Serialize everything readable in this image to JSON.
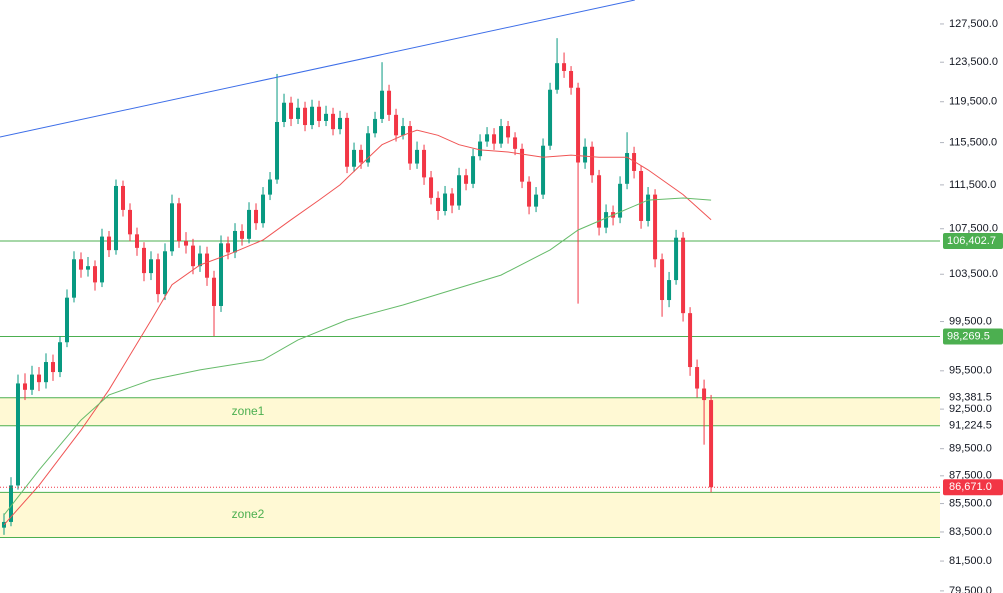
{
  "chart_data": {
    "type": "candlestick",
    "log_scale": true,
    "ylim": [
      79360,
      130070
    ],
    "xlim": [
      -0.57,
      133.7
    ],
    "yticks": [
      {
        "value": 127500,
        "label": "127,500.0"
      },
      {
        "value": 123500,
        "label": "123,500.0"
      },
      {
        "value": 119500,
        "label": "119,500.0"
      },
      {
        "value": 115500,
        "label": "115,500.0"
      },
      {
        "value": 111500,
        "label": "111,500.0"
      },
      {
        "value": 107500,
        "label": "107,500.0"
      },
      {
        "value": 103500,
        "label": "103,500.0"
      },
      {
        "value": 99500,
        "label": "99,500.0"
      },
      {
        "value": 95500,
        "label": "95,500.0"
      },
      {
        "value": 92500,
        "label": "92,500.0"
      },
      {
        "value": 89500,
        "label": "89,500.0"
      },
      {
        "value": 87500,
        "label": "87,500.0"
      },
      {
        "value": 85500,
        "label": "85,500.0"
      },
      {
        "value": 83500,
        "label": "83,500.0"
      },
      {
        "value": 81500,
        "label": "81,500.0"
      },
      {
        "value": 79500,
        "label": "79,500.0"
      }
    ],
    "up_color": "#089981",
    "down_color": "#f23645",
    "series": {
      "open": [
        83800,
        84200,
        86800,
        94500,
        94000,
        95200,
        94600,
        96200,
        95400,
        97800,
        101500,
        104800,
        103900,
        104200,
        102800,
        106800,
        105600,
        111400,
        109200,
        107000,
        105800,
        103600,
        104800,
        101800,
        105500,
        109800,
        106400,
        106000,
        104200,
        105300,
        103200,
        100800,
        106200,
        105400,
        107300,
        106600,
        109200,
        108000,
        110600,
        112000,
        117500,
        119400,
        117800,
        118900,
        117200,
        119000,
        117600,
        118300,
        116800,
        117900,
        113200,
        114800,
        113600,
        116400,
        117800,
        120600,
        118200,
        116200,
        117100,
        113500,
        114800,
        112200,
        110300,
        109100,
        110700,
        109600,
        112400,
        111600,
        114200,
        115600,
        116300,
        115400,
        117100,
        116000,
        114900,
        111800,
        109500,
        110600,
        115200,
        120700,
        123400,
        122600,
        120900,
        113600,
        115100,
        112400,
        107600,
        109000,
        108500,
        111600,
        114500,
        112800,
        108200,
        110600,
        104800,
        101300,
        103000,
        106700,
        100200,
        95800,
        94100,
        93200
      ],
      "high": [
        84800,
        87400,
        95200,
        95300,
        95900,
        95800,
        96900,
        96800,
        98300,
        102200,
        105500,
        105400,
        105000,
        104700,
        107500,
        107300,
        112000,
        111900,
        109800,
        107600,
        106300,
        105500,
        105300,
        106200,
        110600,
        110300,
        107200,
        106600,
        106000,
        105900,
        103800,
        106900,
        106800,
        108000,
        107900,
        109900,
        109800,
        111300,
        112700,
        122300,
        120300,
        120000,
        119800,
        119500,
        119700,
        119600,
        119100,
        118900,
        118600,
        118400,
        115500,
        115300,
        117100,
        118500,
        123500,
        121200,
        118800,
        117900,
        117600,
        115600,
        115300,
        112800,
        110900,
        111400,
        111200,
        113100,
        113000,
        114900,
        116300,
        117000,
        116900,
        117800,
        117600,
        116500,
        115400,
        112300,
        111300,
        115900,
        121400,
        126000,
        124500,
        123100,
        121400,
        115900,
        115600,
        112900,
        109700,
        109600,
        112300,
        116500,
        115100,
        113300,
        111300,
        111100,
        105300,
        103700,
        107400,
        107200,
        100700,
        96400,
        94800,
        93600
      ],
      "low": [
        83300,
        83900,
        86500,
        93200,
        93600,
        93900,
        94100,
        94700,
        95000,
        97400,
        101100,
        103200,
        103300,
        102100,
        102400,
        105000,
        105200,
        108600,
        106400,
        105100,
        102900,
        103000,
        101100,
        101300,
        105100,
        105800,
        105300,
        103500,
        103700,
        102500,
        98300,
        100300,
        104800,
        104900,
        106000,
        106200,
        107400,
        107600,
        110100,
        111600,
        117000,
        117100,
        117300,
        116600,
        116800,
        117000,
        117100,
        116200,
        116300,
        112600,
        112700,
        113000,
        113200,
        116000,
        117400,
        117600,
        115600,
        115800,
        112900,
        113000,
        111500,
        109700,
        108300,
        108700,
        108900,
        109200,
        111000,
        111200,
        113800,
        115100,
        114800,
        115000,
        115400,
        114300,
        111200,
        108800,
        109000,
        110200,
        114800,
        120300,
        121900,
        120200,
        101000,
        113000,
        111700,
        106900,
        107100,
        107800,
        108000,
        111100,
        112100,
        107500,
        107700,
        104100,
        99900,
        100700,
        102600,
        99500,
        95100,
        93400,
        89800,
        86300
      ],
      "close": [
        84200,
        86800,
        94500,
        94000,
        95200,
        94600,
        96200,
        95400,
        97800,
        101500,
        104800,
        103900,
        104200,
        102800,
        106800,
        105600,
        111400,
        109200,
        107000,
        105800,
        103600,
        104800,
        101800,
        105500,
        109800,
        106400,
        106000,
        104200,
        105300,
        103200,
        100800,
        106200,
        105400,
        107300,
        106600,
        109200,
        108000,
        110600,
        112000,
        117500,
        119400,
        117800,
        118900,
        117200,
        119000,
        117600,
        118300,
        116800,
        117900,
        113200,
        114800,
        113600,
        116400,
        117800,
        120600,
        118200,
        116200,
        117100,
        113500,
        114800,
        112200,
        110300,
        109100,
        110700,
        109600,
        112400,
        111600,
        114200,
        115600,
        116300,
        115400,
        117100,
        116000,
        114900,
        111800,
        109500,
        110600,
        115200,
        120700,
        123400,
        122600,
        120900,
        113600,
        115100,
        112400,
        107600,
        109000,
        108500,
        111600,
        114500,
        112800,
        108200,
        110600,
        104800,
        101300,
        103000,
        106700,
        100200,
        95800,
        94100,
        93200,
        86671
      ]
    },
    "last_price_label": "86,671.0",
    "lines": [
      {
        "color": "#f05454",
        "x": [
          0,
          5,
          11,
          15,
          21,
          24,
          28,
          32,
          37,
          41,
          45,
          48,
          51,
          54,
          57,
          59,
          62,
          65,
          68,
          72,
          77,
          81,
          85,
          89,
          92,
          97,
          101
        ],
        "values": [
          84000,
          86800,
          90900,
          94000,
          99600,
          102600,
          104300,
          105200,
          106500,
          108300,
          110100,
          111500,
          113400,
          115300,
          116200,
          116700,
          116200,
          115300,
          114800,
          114600,
          114100,
          114300,
          114100,
          114100,
          112900,
          110600,
          108300
        ]
      },
      {
        "color": "#66bb6a",
        "x": [
          0,
          5,
          11,
          15,
          21,
          28,
          37,
          42,
          49,
          57,
          64,
          71,
          78,
          82,
          88,
          92,
          97,
          101
        ],
        "values": [
          84690,
          87920,
          91660,
          93600,
          94770,
          95570,
          96370,
          97990,
          99630,
          100880,
          102150,
          103430,
          105620,
          107390,
          109010,
          110100,
          110290,
          110100
        ]
      },
      {
        "color": "#3d6ee8",
        "x": [
          -0.57,
          90.1
        ],
        "values": [
          116040,
          130070
        ]
      }
    ],
    "levels": [
      {
        "value": 106402.7,
        "label": "106,402.7",
        "color": "#4caf50"
      },
      {
        "value": 98269.5,
        "label": "98,269.5",
        "color": "#4caf50"
      }
    ],
    "zones": [
      {
        "name": "zone1",
        "range": [
          91224.5,
          93381.5
        ],
        "range_labels": [
          "91,224.5",
          "93,381.5"
        ]
      },
      {
        "name": "zone2",
        "range": [
          83120,
          86300
        ]
      }
    ]
  }
}
